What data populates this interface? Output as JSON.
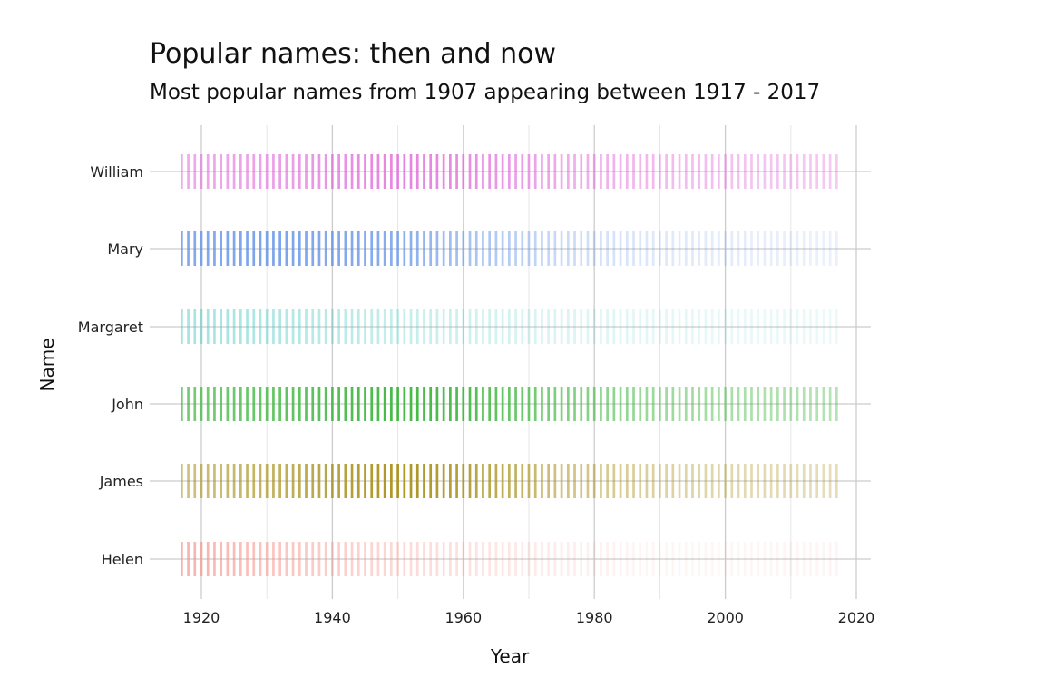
{
  "chart_data": {
    "type": "strip",
    "title": "Popular names: then and now",
    "subtitle": "Most popular names from 1907 appearing between 1917 - 2017",
    "xlabel": "Year",
    "ylabel": "Name",
    "xlim": [
      1909,
      2022
    ],
    "x_ticks": [
      1920,
      1940,
      1960,
      1980,
      2000,
      2020
    ],
    "x_tick_labels": [
      "1920",
      "1940",
      "1960",
      "1980",
      "2000",
      "2020"
    ],
    "year_range": [
      1917,
      2017
    ],
    "grid": true,
    "legend": "none",
    "categories": [
      "William",
      "Mary",
      "Margaret",
      "John",
      "James",
      "Helen"
    ],
    "series": [
      {
        "name": "William",
        "color": "#e066d9",
        "opacity_keyframes": [
          [
            1917,
            0.55
          ],
          [
            1935,
            0.65
          ],
          [
            1950,
            0.8
          ],
          [
            1960,
            0.75
          ],
          [
            1975,
            0.55
          ],
          [
            1990,
            0.45
          ],
          [
            2005,
            0.38
          ],
          [
            2017,
            0.35
          ]
        ]
      },
      {
        "name": "Mary",
        "color": "#5b8ee6",
        "opacity_keyframes": [
          [
            1917,
            0.75
          ],
          [
            1930,
            0.8
          ],
          [
            1950,
            0.72
          ],
          [
            1960,
            0.55
          ],
          [
            1975,
            0.32
          ],
          [
            1990,
            0.2
          ],
          [
            2005,
            0.15
          ],
          [
            2017,
            0.12
          ]
        ]
      },
      {
        "name": "Margaret",
        "color": "#4cc9c4",
        "opacity_keyframes": [
          [
            1917,
            0.5
          ],
          [
            1930,
            0.45
          ],
          [
            1950,
            0.33
          ],
          [
            1970,
            0.22
          ],
          [
            1990,
            0.15
          ],
          [
            2005,
            0.12
          ],
          [
            2017,
            0.1
          ]
        ]
      },
      {
        "name": "John",
        "color": "#3cb63c",
        "opacity_keyframes": [
          [
            1917,
            0.7
          ],
          [
            1935,
            0.82
          ],
          [
            1950,
            0.95
          ],
          [
            1960,
            0.9
          ],
          [
            1975,
            0.65
          ],
          [
            1990,
            0.5
          ],
          [
            2005,
            0.42
          ],
          [
            2017,
            0.38
          ]
        ]
      },
      {
        "name": "James",
        "color": "#a8901a",
        "opacity_keyframes": [
          [
            1917,
            0.55
          ],
          [
            1935,
            0.75
          ],
          [
            1950,
            0.95
          ],
          [
            1960,
            0.85
          ],
          [
            1975,
            0.55
          ],
          [
            1990,
            0.4
          ],
          [
            2005,
            0.33
          ],
          [
            2017,
            0.3
          ]
        ]
      },
      {
        "name": "Helen",
        "color": "#f5938a",
        "opacity_keyframes": [
          [
            1917,
            0.7
          ],
          [
            1930,
            0.55
          ],
          [
            1950,
            0.35
          ],
          [
            1970,
            0.2
          ],
          [
            1985,
            0.1
          ],
          [
            2000,
            0.08
          ],
          [
            2017,
            0.1
          ]
        ]
      }
    ]
  }
}
